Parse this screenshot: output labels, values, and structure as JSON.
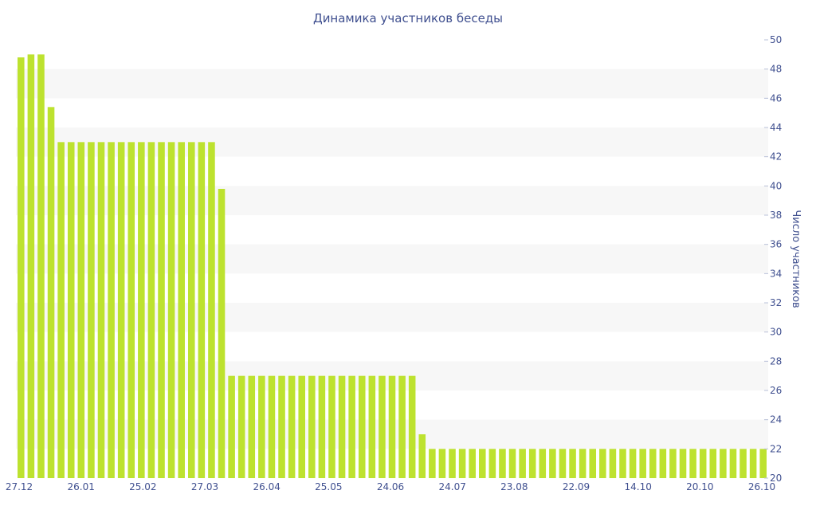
{
  "chart_data": {
    "type": "bar",
    "title": "Динамика участников беседы",
    "ylabel": "Число участников",
    "ylim": [
      20,
      50
    ],
    "yticks": [
      20,
      22,
      24,
      26,
      28,
      30,
      32,
      34,
      36,
      38,
      40,
      42,
      44,
      46,
      48,
      50
    ],
    "xtick_labels": [
      "27.12",
      "26.01",
      "25.02",
      "27.03",
      "26.04",
      "25.05",
      "24.06",
      "24.07",
      "23.08",
      "22.09",
      "14.10",
      "20.10",
      "26.10"
    ],
    "colors": {
      "bar": "#bde22f",
      "grid_band": "#f7f7f7",
      "text": "#3f4f8f"
    },
    "grid": true,
    "values": [
      48.8,
      49,
      49,
      45.4,
      43,
      43,
      43,
      43,
      43,
      43,
      43,
      43,
      43,
      43,
      43,
      43,
      43,
      43,
      43,
      43,
      39.8,
      27,
      27,
      27,
      27,
      27,
      27,
      27,
      27,
      27,
      27,
      27,
      27,
      27,
      27,
      27,
      27,
      27,
      27,
      27,
      23,
      22,
      22,
      22,
      22,
      22,
      22,
      22,
      22,
      22,
      22,
      22,
      22,
      22,
      22,
      22,
      22,
      22,
      22,
      22,
      22,
      22,
      22,
      22,
      22,
      22,
      22,
      22,
      22,
      22,
      22,
      22,
      22,
      22,
      22
    ]
  }
}
